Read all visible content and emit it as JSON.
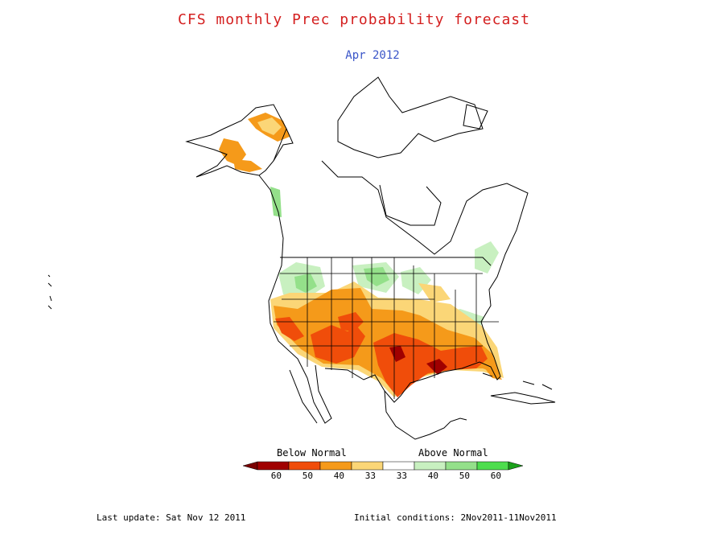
{
  "header": {
    "title": "CFS monthly Prec probability forecast",
    "subtitle": "Apr 2012"
  },
  "legend": {
    "below_label": "Below Normal",
    "above_label": "Above Normal",
    "bins": [
      {
        "label": "60",
        "color": "#a00000"
      },
      {
        "label": "50",
        "color": "#f04d0a"
      },
      {
        "label": "40",
        "color": "#f59a1a"
      },
      {
        "label": "33",
        "color": "#fbd677"
      },
      {
        "label": "33",
        "color": "#ffffff"
      },
      {
        "label": "40",
        "color": "#c8f0c0"
      },
      {
        "label": "50",
        "color": "#94e08a"
      },
      {
        "label": "60",
        "color": "#4ddd4d"
      }
    ],
    "left_arrow_color": "#7a0000",
    "right_arrow_color": "#1aa01a"
  },
  "footer": {
    "last_update": "Last update: Sat Nov 12 2011",
    "initial_conditions": "Initial conditions: 2Nov2011-11Nov2011"
  }
}
